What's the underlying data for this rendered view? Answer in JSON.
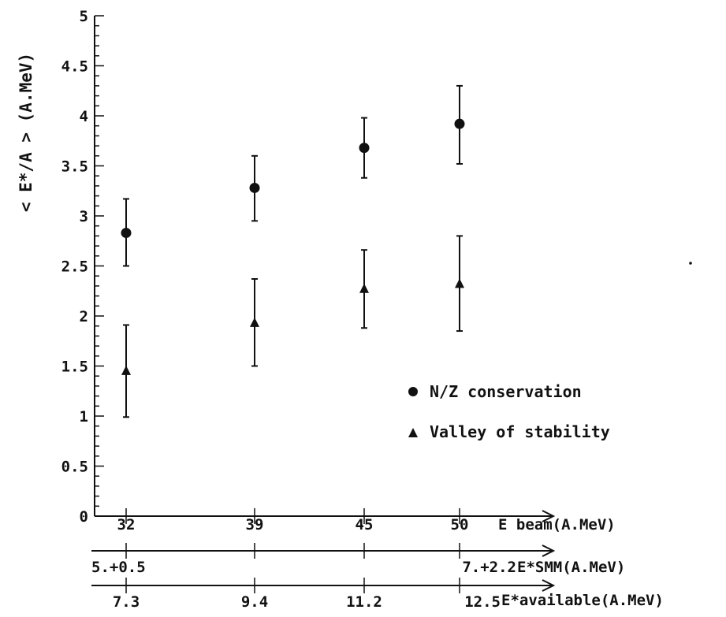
{
  "chart_data": {
    "type": "scatter",
    "ylabel": "< E*/A > (A.MeV)",
    "ylim": [
      0,
      5
    ],
    "y_ticks": [
      "0",
      "0.5",
      "1",
      "1.5",
      "2",
      "2.5",
      "3",
      "3.5",
      "4",
      "4.5",
      "5"
    ],
    "y_tick_values": [
      0,
      0.5,
      1,
      1.5,
      2,
      2.5,
      3,
      3.5,
      4,
      4.5,
      5
    ],
    "x_axes": [
      {
        "label": "E beam(A.MeV)",
        "ticks": [
          "32",
          "39",
          "45",
          "50"
        ]
      },
      {
        "label": "E*SMM(A.MeV)",
        "ticks": [
          "5.+0.5",
          "",
          "",
          "7.+2.2"
        ]
      },
      {
        "label": "E*available(A.MeV)",
        "ticks": [
          "7.3",
          "9.4",
          "11.2",
          "12.5"
        ]
      }
    ],
    "x": [
      32,
      39,
      45,
      50
    ],
    "series": [
      {
        "name": "N/Z conservation",
        "marker": "circle",
        "values": [
          2.83,
          3.28,
          3.68,
          3.92
        ],
        "err_low": [
          2.5,
          2.95,
          3.38,
          3.52
        ],
        "err_high": [
          3.17,
          3.6,
          3.98,
          4.3
        ]
      },
      {
        "name": "Valley of stability",
        "marker": "triangle",
        "values": [
          1.45,
          1.93,
          2.27,
          2.32
        ],
        "err_low": [
          0.99,
          1.5,
          1.88,
          1.85
        ],
        "err_high": [
          1.91,
          2.37,
          2.66,
          2.8
        ]
      }
    ],
    "legend_position": "right-middle",
    "grid": false
  }
}
